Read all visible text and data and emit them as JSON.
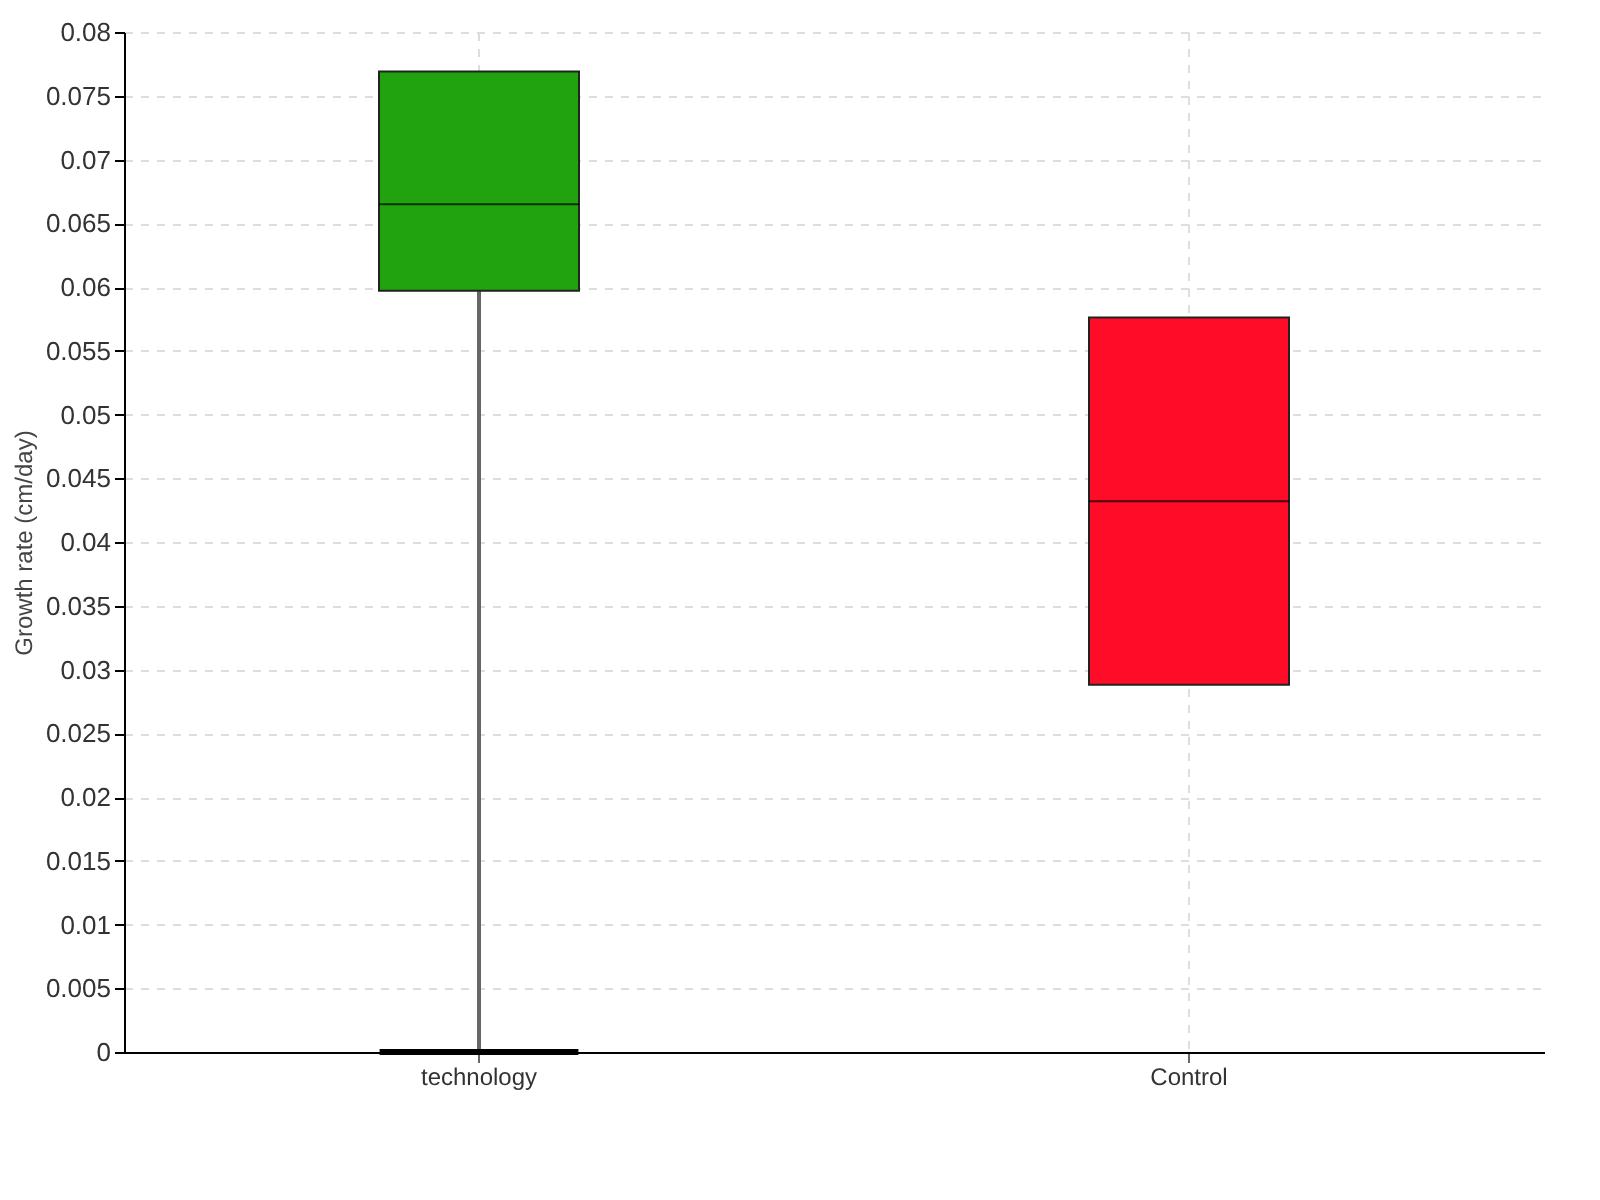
{
  "chart_data": {
    "type": "box",
    "ylabel": "Growth rate (cm/day)",
    "categories": [
      "technology",
      "Control"
    ],
    "boxes": [
      {
        "low": 0,
        "q1": 0.0597,
        "median": 0.0665,
        "q3": 0.0769,
        "high": 0.0769
      },
      {
        "low": 0.0288,
        "q1": 0.0288,
        "median": 0.0432,
        "q3": 0.0576,
        "high": 0.0576
      }
    ],
    "colors": [
      "#21a30f",
      "#ff0c28"
    ],
    "ylim": [
      0,
      0.08
    ],
    "yticks": [
      0,
      0.005,
      0.01,
      0.015,
      0.02,
      0.025,
      0.03,
      0.035,
      0.04,
      0.045,
      0.05,
      0.055,
      0.06,
      0.065,
      0.07,
      0.075,
      0.08
    ],
    "grid": true
  }
}
